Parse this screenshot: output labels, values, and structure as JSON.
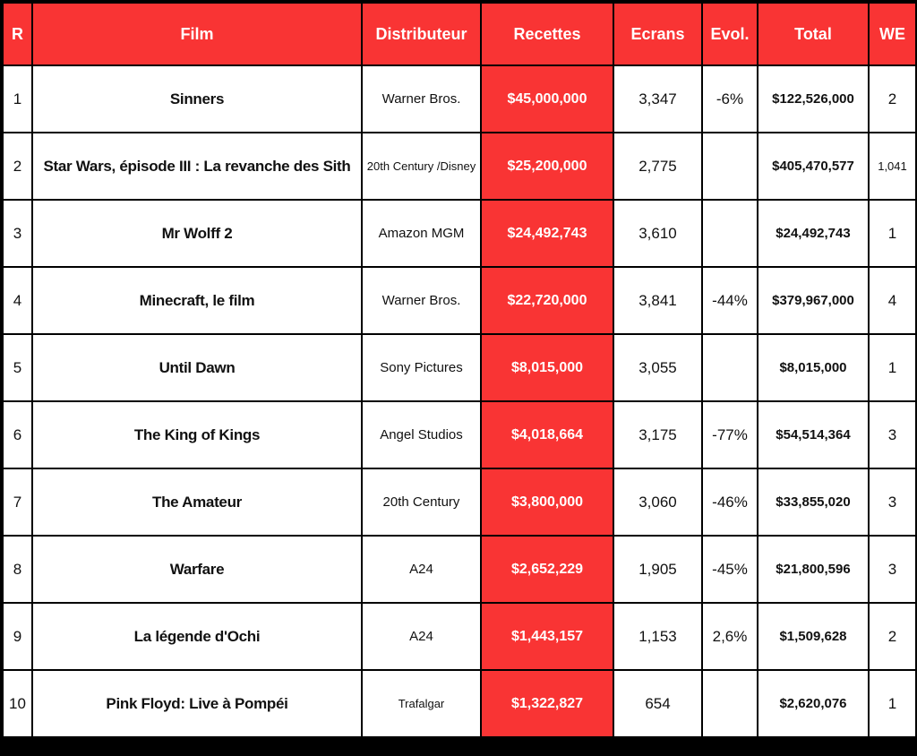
{
  "table": {
    "header": [
      "R",
      "Film",
      "Distributeur",
      "Recettes",
      "Ecrans",
      "Evol.",
      "Total",
      "WE"
    ],
    "rows": [
      [
        "1",
        "Sinners",
        "Warner Bros.",
        "$45,000,000",
        "3,347",
        "-6%",
        "$122,526,000",
        "2"
      ],
      [
        "2",
        "Star Wars, épisode III : La revanche des Sith",
        "20th Century /Disney",
        "$25,200,000",
        "2,775",
        null,
        "$405,470,577",
        "1,041"
      ],
      [
        "3",
        "Mr Wolff 2",
        "Amazon MGM",
        "$24,492,743",
        "3,610",
        null,
        "$24,492,743",
        "1"
      ],
      [
        "4",
        "Minecraft, le film",
        "Warner Bros.",
        "$22,720,000",
        "3,841",
        "-44%",
        "$379,967,000",
        "4"
      ],
      [
        "5",
        "Until Dawn",
        "Sony Pictures",
        "$8,015,000",
        "3,055",
        null,
        "$8,015,000",
        "1"
      ],
      [
        "6",
        "The King of Kings",
        "Angel Studios",
        "$4,018,664",
        "3,175",
        "-77%",
        "$54,514,364",
        "3"
      ],
      [
        "7",
        "The Amateur",
        "20th Century",
        "$3,800,000",
        "3,060",
        "-46%",
        "$33,855,020",
        "3"
      ],
      [
        "8",
        "Warfare",
        "A24",
        "$2,652,229",
        "1,905",
        "-45%",
        "$21,800,596",
        "3"
      ],
      [
        "9",
        "La légende d'Ochi",
        "A24",
        "$1,443,157",
        "1,153",
        "2,6%",
        "$1,509,628",
        "2"
      ],
      [
        "10",
        "Pink Floyd: Live à Pompéi",
        "Trafalgar",
        "$1,322,827",
        "654",
        null,
        "$2,620,076",
        "1"
      ]
    ]
  }
}
